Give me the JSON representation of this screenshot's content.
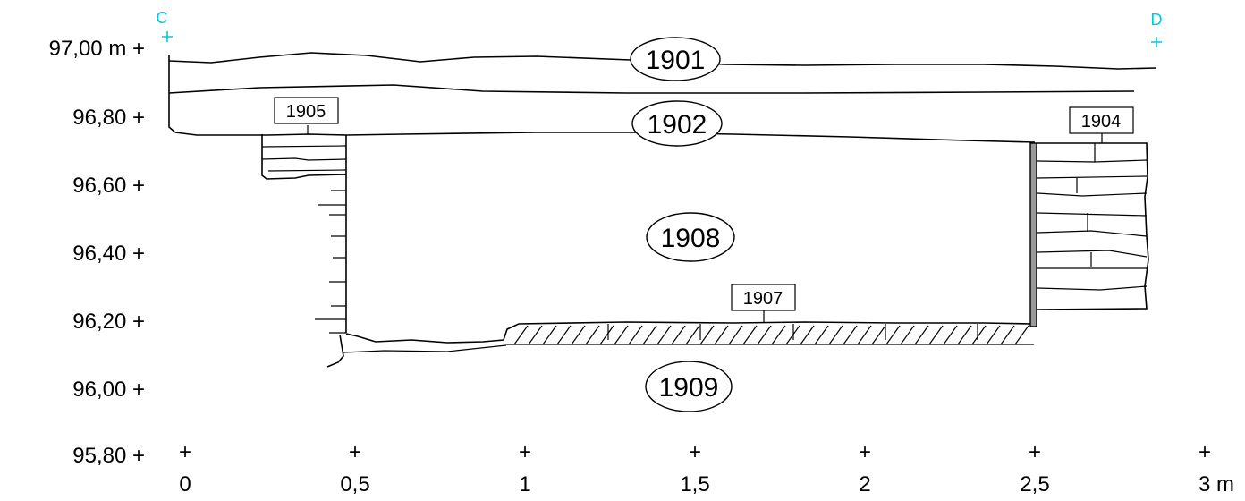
{
  "section": {
    "point_start": "C",
    "point_end": "D"
  },
  "y_axis": {
    "ticks": [
      "97,00 m +",
      "96,80 +",
      "96,60 +",
      "96,40 +",
      "96,20 +",
      "96,00 +",
      "95,80 +"
    ]
  },
  "x_axis": {
    "ticks": [
      "0",
      "0,5",
      "1",
      "1,5",
      "2",
      "2,5",
      "3 m"
    ]
  },
  "layers": {
    "l1901": "1901",
    "l1902": "1902",
    "l1908": "1908",
    "l1909": "1909"
  },
  "features": {
    "f1905": "1905",
    "f1904": "1904",
    "f1907": "1907"
  }
}
